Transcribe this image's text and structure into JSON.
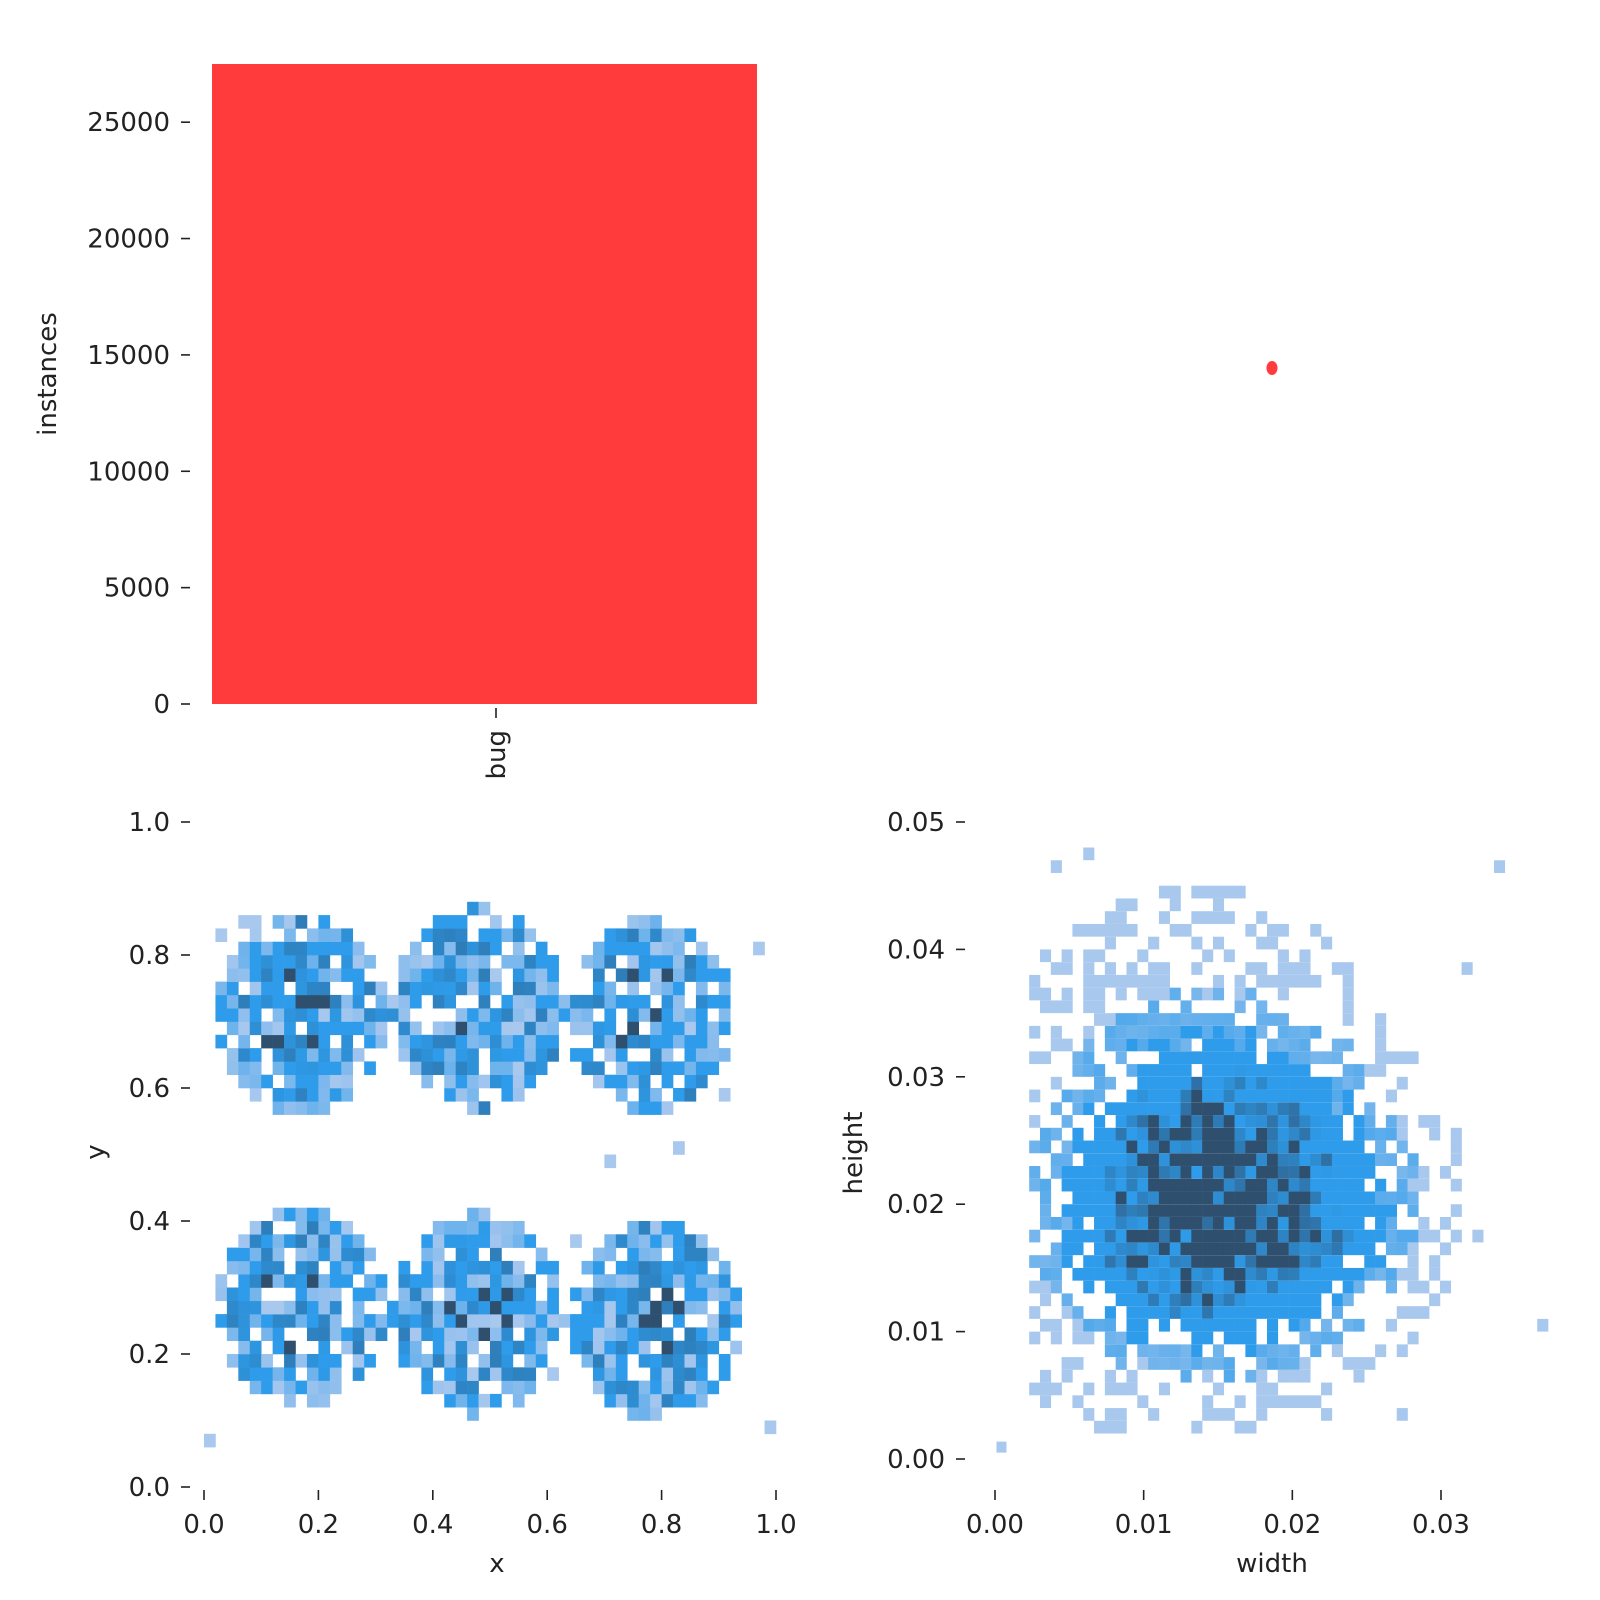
{
  "chart_data": [
    {
      "type": "bar",
      "categories": [
        "bug"
      ],
      "values": [
        27500
      ],
      "xlabel": "",
      "ylabel": "instances",
      "ylim": [
        0,
        27500
      ],
      "yticks": [
        0,
        5000,
        10000,
        15000,
        20000,
        25000
      ],
      "color": "#ff3b3b",
      "grid": false
    },
    {
      "type": "scatter",
      "description_free": true,
      "points": [
        {
          "x": 0.5,
          "y": 0.5
        }
      ],
      "color": "#ff3b3b"
    },
    {
      "type": "heatmap",
      "xlabel": "x",
      "ylabel": "y",
      "xlim": [
        0,
        1
      ],
      "ylim": [
        0,
        1
      ],
      "xticks": [
        "0.0",
        "0.2",
        "0.4",
        "0.6",
        "0.8",
        "1.0"
      ],
      "yticks": [
        "0.0",
        "0.2",
        "0.4",
        "0.6",
        "0.8",
        "1.0"
      ],
      "bins": 50,
      "clusters": [
        {
          "cx": 0.17,
          "cy": 0.71,
          "r": 0.14
        },
        {
          "cx": 0.48,
          "cy": 0.72,
          "r": 0.145
        },
        {
          "cx": 0.78,
          "cy": 0.71,
          "r": 0.14
        },
        {
          "cx": 0.17,
          "cy": 0.27,
          "r": 0.145
        },
        {
          "cx": 0.48,
          "cy": 0.26,
          "r": 0.145
        },
        {
          "cx": 0.79,
          "cy": 0.25,
          "r": 0.14
        }
      ],
      "colors": {
        "low": "#a9c8ee",
        "mid": "#2e9cea",
        "high": "#2f4f6f"
      }
    },
    {
      "type": "heatmap",
      "xlabel": "width",
      "ylabel": "height",
      "xlim": [
        -0.0008,
        0.0372
      ],
      "ylim": [
        -0.0008,
        0.05
      ],
      "xticks": [
        "0.00",
        "0.01",
        "0.02",
        "0.03"
      ],
      "ytick_values": [
        0,
        0.01,
        0.02,
        0.03,
        0.04,
        0.05
      ],
      "yticks": [
        "0.00",
        "0.01",
        "0.02",
        "0.03",
        "0.04",
        "0.05"
      ],
      "xtick_values": [
        0,
        0.01,
        0.02,
        0.03
      ],
      "peak": {
        "width": 0.013,
        "height": 0.018
      },
      "colors": {
        "low": "#a9c8ee",
        "mid": "#2e9cea",
        "high": "#2f4f6f"
      }
    }
  ]
}
